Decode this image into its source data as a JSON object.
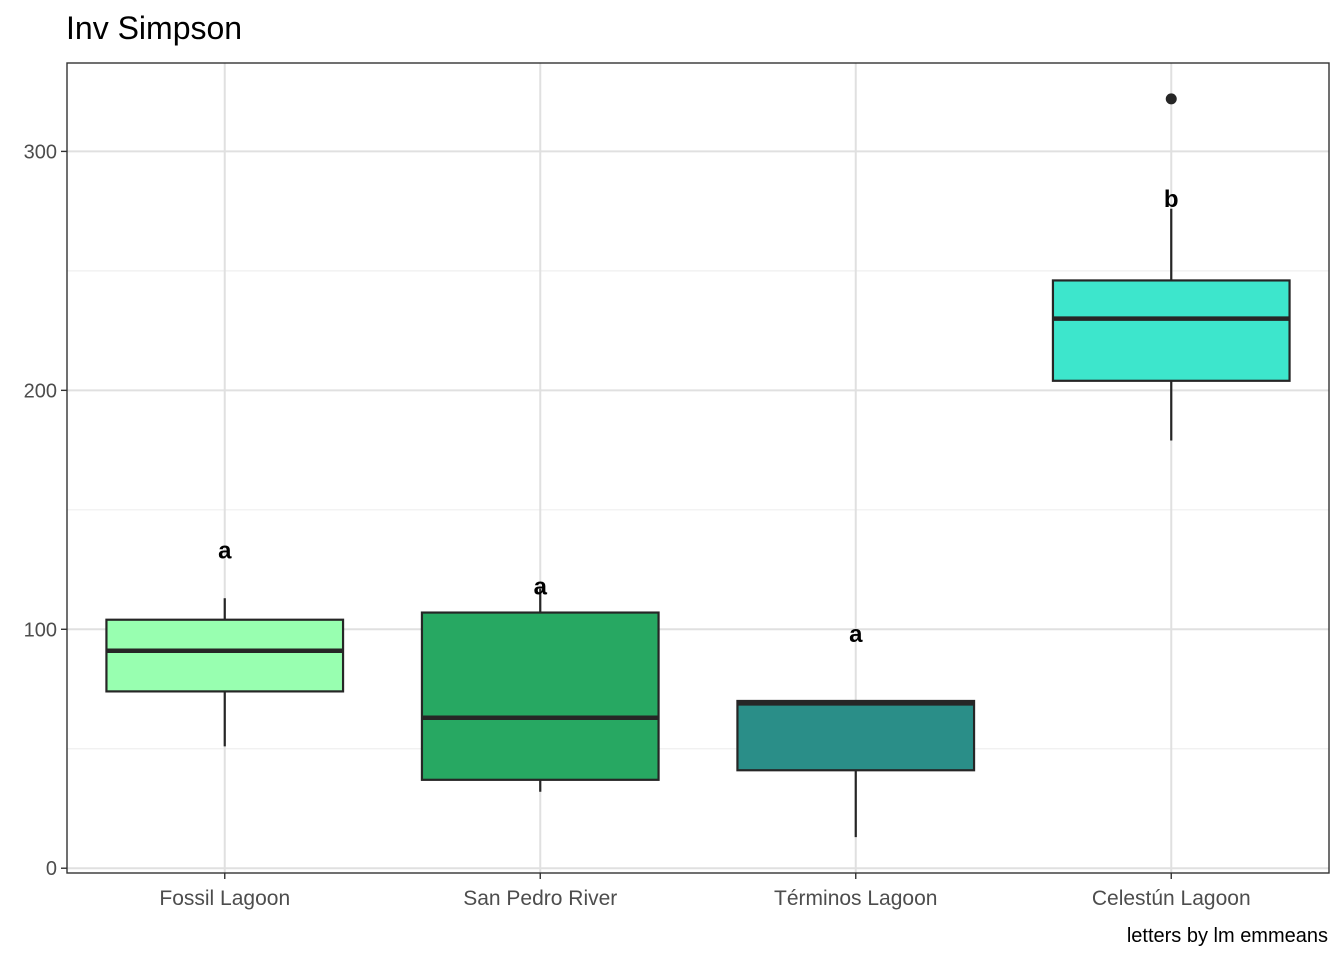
{
  "chart_data": {
    "type": "boxplot",
    "title": "Inv Simpson",
    "xlabel": "",
    "ylabel": "",
    "caption": "letters by lm emmeans",
    "categories": [
      "Fossil Lagoon",
      "San Pedro River",
      "Términos Lagoon",
      "Celestún Lagoon"
    ],
    "yticks": [
      "0",
      "100",
      "200",
      "300"
    ],
    "ylim": [
      -2,
      337
    ],
    "grid": true,
    "legend": "none",
    "boxes": [
      {
        "category": "Fossil Lagoon",
        "whisker_low": 51,
        "q1": 74,
        "median": 91,
        "q3": 104,
        "whisker_high": 113,
        "outliers": [],
        "letter": "a",
        "letter_y": 133,
        "color": "#98FFB0"
      },
      {
        "category": "San Pedro River",
        "whisker_low": 32,
        "q1": 37,
        "median": 63,
        "q3": 107,
        "whisker_high": 117,
        "outliers": [],
        "letter": "a",
        "letter_y": 118,
        "color": "#27A862"
      },
      {
        "category": "Términos Lagoon",
        "whisker_low": 13,
        "q1": 41,
        "median": 69,
        "q3": 70,
        "whisker_high": 70,
        "outliers": [],
        "letter": "a",
        "letter_y": 98,
        "color": "#2A8E88"
      },
      {
        "category": "Celestún Lagoon",
        "whisker_low": 179,
        "q1": 204,
        "median": 230,
        "q3": 246,
        "whisker_high": 276,
        "outliers": [
          322
        ],
        "letter": "b",
        "letter_y": 280,
        "color": "#3DE6CC"
      }
    ]
  }
}
